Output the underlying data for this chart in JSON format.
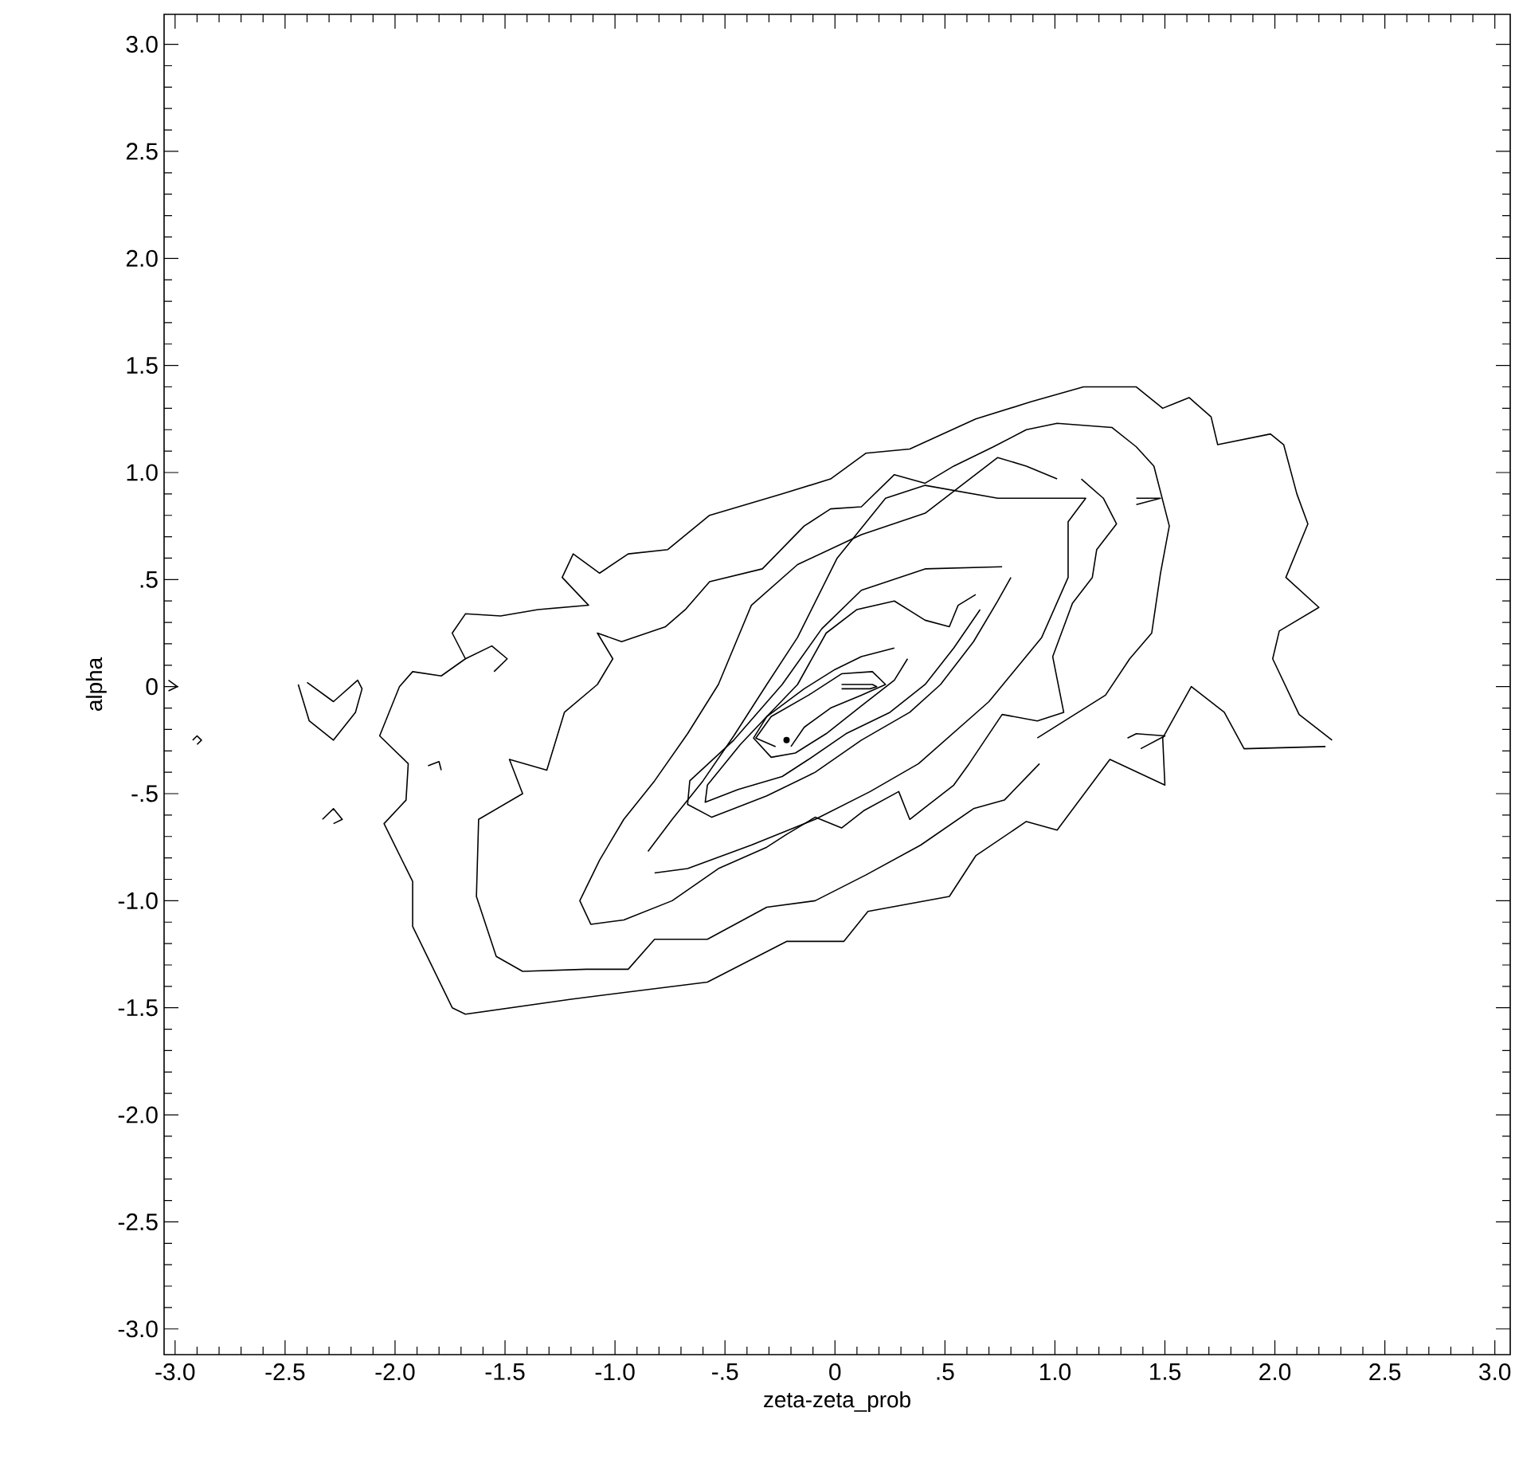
{
  "chart_data": {
    "type": "line",
    "xlabel": "zeta-zeta_prob",
    "ylabel": "alpha",
    "xlim": [
      -3.05,
      3.07
    ],
    "ylim": [
      -3.12,
      3.14
    ],
    "xticks": [
      {
        "value": -3,
        "label": "-3.0"
      },
      {
        "value": -2.5,
        "label": "-2.5"
      },
      {
        "value": -2,
        "label": "-2.0"
      },
      {
        "value": -1.5,
        "label": "-1.5"
      },
      {
        "value": -1,
        "label": "-1.0"
      },
      {
        "value": -0.5,
        "label": "-.5"
      },
      {
        "value": 0,
        "label": "0"
      },
      {
        "value": 0.5,
        "label": ".5"
      },
      {
        "value": 1,
        "label": "1.0"
      },
      {
        "value": 1.5,
        "label": "1.5"
      },
      {
        "value": 2,
        "label": "2.0"
      },
      {
        "value": 2.5,
        "label": "2.5"
      },
      {
        "value": 3,
        "label": "3.0"
      }
    ],
    "yticks": [
      {
        "value": -3,
        "label": "-3.0"
      },
      {
        "value": -2.5,
        "label": "-2.5"
      },
      {
        "value": -2,
        "label": "-2.0"
      },
      {
        "value": -1.5,
        "label": "-1.5"
      },
      {
        "value": -1,
        "label": "-1.0"
      },
      {
        "value": -0.5,
        "label": "-.5"
      },
      {
        "value": 0,
        "label": "0"
      },
      {
        "value": 0.5,
        "label": ".5"
      },
      {
        "value": 1,
        "label": "1.0"
      },
      {
        "value": 1.5,
        "label": "1.5"
      },
      {
        "value": 2,
        "label": "2.0"
      },
      {
        "value": 2.5,
        "label": "2.5"
      },
      {
        "value": 3,
        "label": "3.0"
      }
    ],
    "series": [
      {
        "color": "#000000",
        "x": [
          2.23,
          1.86,
          1.77,
          1.62,
          1.49,
          1.5,
          1.25,
          1.01,
          0.87,
          0.64,
          0.52,
          0.15,
          0.04,
          -0.22,
          -0.58,
          -1.2,
          -1.68,
          -1.74,
          -1.92,
          -1.92,
          -2.05,
          -1.95,
          -1.94,
          -2.07,
          -1.98,
          -1.92,
          -1.79,
          -1.68,
          -1.74,
          -1.68,
          -1.52,
          -1.35,
          -1.12,
          -1.24,
          -1.19,
          -1.07,
          -0.94,
          -0.76,
          -0.57,
          -0.24,
          -0.02,
          0.14,
          0.34,
          0.64,
          0.89,
          1.13,
          1.37,
          1.49,
          1.61,
          1.71,
          1.74,
          1.98,
          2.04,
          2.1,
          2.15,
          2.05,
          2.2,
          2.02,
          1.99,
          2.11,
          2.26
        ],
        "values": [
          -0.28,
          -0.29,
          -0.12,
          0.0,
          -0.24,
          -0.46,
          -0.34,
          -0.67,
          -0.63,
          -0.79,
          -0.98,
          -1.05,
          -1.19,
          -1.19,
          -1.38,
          -1.46,
          -1.53,
          -1.5,
          -1.12,
          -0.91,
          -0.64,
          -0.53,
          -0.36,
          -0.23,
          0.0,
          0.07,
          0.05,
          0.13,
          0.25,
          0.34,
          0.33,
          0.36,
          0.38,
          0.51,
          0.62,
          0.53,
          0.62,
          0.64,
          0.8,
          0.9,
          0.97,
          1.09,
          1.11,
          1.25,
          1.33,
          1.4,
          1.4,
          1.3,
          1.35,
          1.26,
          1.13,
          1.18,
          1.13,
          0.9,
          0.76,
          0.51,
          0.37,
          0.26,
          0.13,
          -0.13,
          -0.25
        ]
      },
      {
        "color": "#000000",
        "x": [
          0.93,
          0.77,
          0.63,
          0.39,
          0.14,
          -0.09,
          -0.31,
          -0.58,
          -0.82,
          -0.94,
          -1.13,
          -1.42,
          -1.54,
          -1.63,
          -1.62,
          -1.42,
          -1.48,
          -1.31,
          -1.23,
          -1.08,
          -1.01,
          -1.08,
          -0.97,
          -0.77,
          -0.68,
          -0.57,
          -0.33,
          -0.14,
          -0.02,
          0.12,
          0.27,
          0.41,
          0.54,
          0.72,
          0.87,
          1.01,
          1.26,
          1.37,
          1.45,
          1.52,
          1.48,
          1.44,
          1.34,
          1.23,
          0.92
        ],
        "values": [
          -0.36,
          -0.53,
          -0.57,
          -0.74,
          -0.88,
          -1.0,
          -1.03,
          -1.18,
          -1.18,
          -1.32,
          -1.32,
          -1.33,
          -1.26,
          -0.98,
          -0.62,
          -0.5,
          -0.34,
          -0.39,
          -0.12,
          0.01,
          0.13,
          0.25,
          0.21,
          0.28,
          0.36,
          0.49,
          0.55,
          0.75,
          0.83,
          0.84,
          0.99,
          0.95,
          1.03,
          1.12,
          1.2,
          1.23,
          1.21,
          1.12,
          1.03,
          0.75,
          0.53,
          0.25,
          0.13,
          -0.04,
          -0.24
        ]
      },
      {
        "color": "#000000",
        "x": [
          1.12,
          1.22,
          1.28,
          1.19,
          1.17,
          1.08,
          0.99,
          1.04,
          0.92,
          0.76,
          0.61,
          0.54,
          0.34,
          0.29,
          0.13,
          0.03,
          -0.09,
          -0.22,
          -0.31,
          -0.53,
          -0.74,
          -0.96,
          -1.11,
          -1.16,
          -1.07,
          -0.96,
          -0.82,
          -0.67,
          -0.53,
          -0.38,
          -0.17,
          0.12,
          0.41,
          0.74,
          0.87,
          1.01
        ],
        "values": [
          0.97,
          0.88,
          0.76,
          0.64,
          0.51,
          0.39,
          0.14,
          -0.12,
          -0.16,
          -0.13,
          -0.36,
          -0.46,
          -0.62,
          -0.49,
          -0.58,
          -0.66,
          -0.61,
          -0.69,
          -0.75,
          -0.85,
          -1.0,
          -1.09,
          -1.11,
          -1.0,
          -0.81,
          -0.62,
          -0.44,
          -0.22,
          0.01,
          0.38,
          0.57,
          0.71,
          0.81,
          1.07,
          1.03,
          0.97
        ]
      },
      {
        "color": "#000000",
        "x": [
          -0.85,
          -0.74,
          -0.6,
          -0.46,
          -0.31,
          -0.17,
          0.01,
          0.23,
          0.41,
          0.74,
          1.14,
          1.06,
          1.06,
          0.94,
          0.7,
          0.38,
          0.16,
          -0.09,
          -0.38,
          -0.67,
          -0.82
        ],
        "values": [
          -0.77,
          -0.62,
          -0.44,
          -0.23,
          0.01,
          0.23,
          0.6,
          0.88,
          0.94,
          0.88,
          0.88,
          0.77,
          0.51,
          0.23,
          -0.07,
          -0.36,
          -0.49,
          -0.62,
          -0.74,
          -0.85,
          -0.87
        ]
      },
      {
        "color": "#000000",
        "x": [
          0.8,
          0.74,
          0.63,
          0.48,
          0.34,
          0.12,
          -0.09,
          -0.31,
          -0.56,
          -0.67,
          -0.66,
          -0.46,
          -0.24,
          -0.06,
          0.12,
          0.41,
          0.76
        ],
        "values": [
          0.51,
          0.4,
          0.21,
          0.01,
          -0.12,
          -0.25,
          -0.4,
          -0.51,
          -0.61,
          -0.55,
          -0.44,
          -0.25,
          0.01,
          0.27,
          0.45,
          0.55,
          0.56
        ]
      },
      {
        "color": "#000000",
        "x": [
          0.66,
          0.54,
          0.41,
          0.25,
          0.05,
          -0.12,
          -0.24,
          -0.44,
          -0.59,
          -0.58,
          -0.43,
          -0.31,
          -0.17,
          -0.04,
          0.1,
          0.27,
          0.41,
          0.52,
          0.56,
          0.64
        ],
        "values": [
          0.36,
          0.18,
          0.01,
          -0.12,
          -0.22,
          -0.34,
          -0.42,
          -0.48,
          -0.54,
          -0.46,
          -0.27,
          -0.14,
          0.01,
          0.25,
          0.36,
          0.4,
          0.31,
          0.28,
          0.38,
          0.43
        ]
      },
      {
        "color": "#000000",
        "x": [
          0.33,
          0.27,
          0.12,
          -0.04,
          -0.18,
          -0.29,
          -0.37,
          -0.31,
          -0.14,
          0.0,
          0.12,
          0.27
        ],
        "values": [
          0.13,
          0.03,
          -0.09,
          -0.22,
          -0.31,
          -0.33,
          -0.24,
          -0.14,
          -0.01,
          0.08,
          0.14,
          0.18
        ]
      },
      {
        "color": "#000000",
        "x": [
          -0.27,
          -0.36,
          -0.29,
          -0.12,
          0.03,
          0.17,
          0.23,
          0.12,
          -0.02,
          -0.14,
          -0.2
        ],
        "values": [
          -0.28,
          -0.24,
          -0.14,
          -0.04,
          0.06,
          0.07,
          0.01,
          -0.04,
          -0.1,
          -0.19,
          -0.28
        ]
      },
      {
        "color": "#000000",
        "x": [
          0.03,
          0.17,
          0.19,
          0.16,
          0.03
        ],
        "values": [
          0.01,
          0.01,
          0.0,
          -0.01,
          -0.01
        ]
      },
      {
        "type": "scatter",
        "color": "#000000",
        "x": [
          -0.22
        ],
        "values": [
          -0.25
        ]
      },
      {
        "color": "#000000",
        "x": [
          -2.4,
          -2.28,
          -2.17,
          -2.15,
          -2.18,
          -2.28,
          -2.39,
          -2.44
        ],
        "values": [
          0.02,
          -0.07,
          0.03,
          -0.01,
          -0.12,
          -0.25,
          -0.16,
          0.01
        ]
      },
      {
        "color": "#000000",
        "x": [
          -3.03,
          -2.99,
          -3.03
        ],
        "values": [
          0.03,
          0.0,
          -0.02
        ]
      },
      {
        "color": "#000000",
        "x": [
          -2.92,
          -2.9,
          -2.88,
          -2.9
        ],
        "values": [
          -0.25,
          -0.23,
          -0.25,
          -0.27
        ]
      },
      {
        "color": "#000000",
        "x": [
          -2.33,
          -2.28,
          -2.24,
          -2.28
        ],
        "values": [
          -0.62,
          -0.57,
          -0.62,
          -0.64
        ]
      },
      {
        "color": "#000000",
        "x": [
          -1.85,
          -1.8,
          -1.79
        ],
        "values": [
          -0.37,
          -0.35,
          -0.39
        ]
      },
      {
        "color": "#000000",
        "x": [
          -1.68,
          -1.56,
          -1.49,
          -1.55
        ],
        "values": [
          0.13,
          0.19,
          0.13,
          0.07
        ]
      },
      {
        "color": "#000000",
        "x": [
          1.37,
          1.48,
          1.37
        ],
        "values": [
          0.88,
          0.88,
          0.85
        ]
      },
      {
        "color": "#000000",
        "x": [
          1.33,
          1.37,
          1.5,
          1.39
        ],
        "values": [
          -0.24,
          -0.22,
          -0.23,
          -0.29
        ]
      }
    ]
  }
}
